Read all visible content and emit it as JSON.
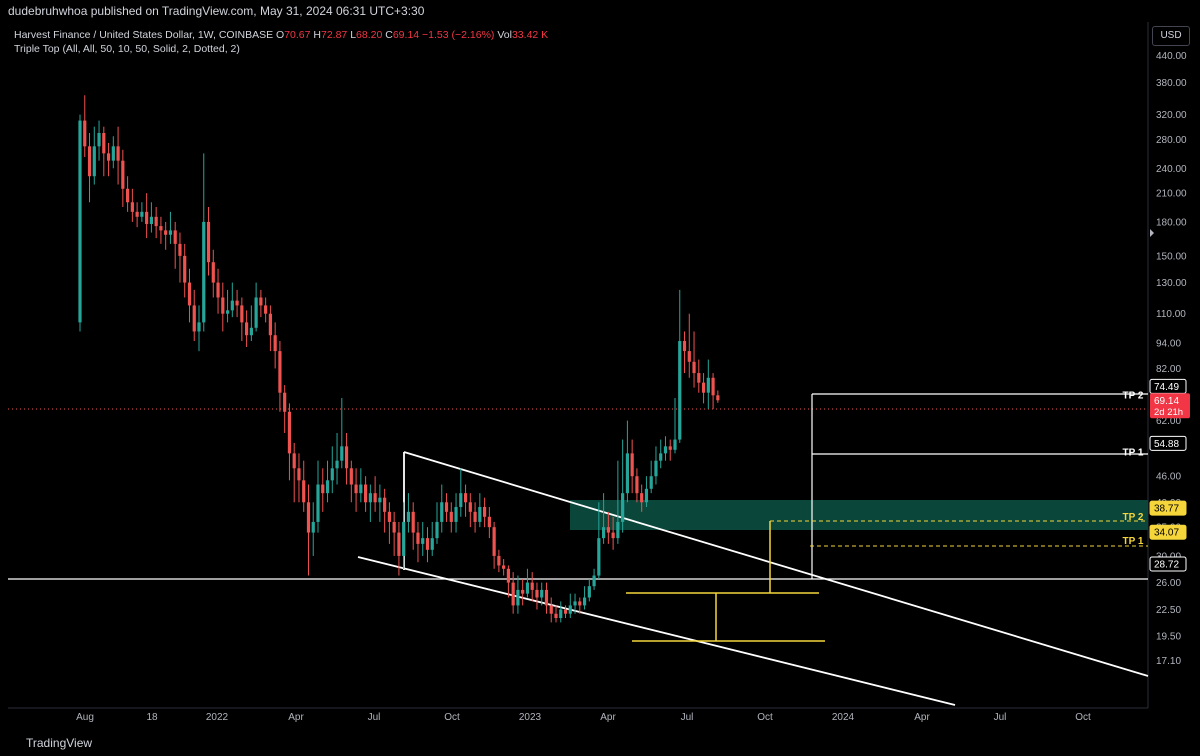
{
  "header": {
    "publisher_line": "dudebruhwhoa published on TradingView.com, May 31, 2024 06:31 UTC+3:30"
  },
  "legend": {
    "symbol_line": "Harvest Finance / United States Dollar, 1W, COINBASE",
    "open_label": "O",
    "open": "70.67",
    "high_label": "H",
    "high": "72.87",
    "low_label": "L",
    "low": "68.20",
    "close_label": "C",
    "close": "69.14",
    "change": "−1.53 (−2.16%)",
    "vol_label": "Vol",
    "vol": "33.42 K",
    "indicator": "Triple Top (All, All, 50, 10, 50, Solid, 2, Dotted, 2)"
  },
  "currency": "USD",
  "footer": {
    "brand": "TradingView"
  },
  "colors": {
    "up": "#26a69a",
    "down": "#ef5350",
    "line": "#ffffff",
    "pattern": "#f5d53a",
    "zone": "#0c4a3e",
    "price_badge": "#f23645",
    "grid": "#2a2e39"
  },
  "chart_data": {
    "type": "candlestick",
    "log_scale": true,
    "grid": false,
    "ylim": [
      15.5,
      460
    ],
    "x_tick_labels": [
      "Aug",
      "18",
      "2022",
      "Apr",
      "Jul",
      "Oct",
      "2023",
      "Apr",
      "Jul",
      "Oct",
      "2024",
      "Apr",
      "Jul",
      "Oct"
    ],
    "y_tick_labels": [
      "440.00",
      "380.00",
      "320.00",
      "280.00",
      "240.00",
      "210.00",
      "180.00",
      "150.00",
      "130.00",
      "110.00",
      "94.00",
      "82.00",
      "62.00",
      "46.00",
      "40.00",
      "35.00",
      "30.00",
      "26.00",
      "22.50",
      "19.50",
      "17.10"
    ],
    "y_tick_values": [
      440,
      380,
      320,
      280,
      240,
      210,
      180,
      150,
      130,
      110,
      94,
      82,
      62,
      46,
      40,
      35,
      30,
      26,
      22.5,
      19.5,
      17.1
    ],
    "last_price": {
      "value": 69.14,
      "label": "69.14",
      "countdown": "2d 21h"
    },
    "price_labels": [
      {
        "value": 74.49,
        "label": "74.49",
        "style": "white"
      },
      {
        "value": 54.88,
        "label": "54.88",
        "style": "white"
      },
      {
        "value": 38.77,
        "label": "38.77",
        "style": "yellow"
      },
      {
        "value": 34.07,
        "label": "34.07",
        "style": "yellow"
      },
      {
        "value": 28.72,
        "label": "28.72",
        "style": "white"
      }
    ],
    "annotations": [
      {
        "text": "TP 2",
        "value": 74.49,
        "color": "white"
      },
      {
        "text": "TP 1",
        "value": 54.88,
        "color": "white"
      },
      {
        "text": "TP 2",
        "value": 38.77,
        "color": "yellow"
      },
      {
        "text": "TP 1",
        "value": 34.07,
        "color": "yellow"
      }
    ],
    "candles": [
      [
        105,
        310,
        320,
        100
      ],
      [
        310,
        270,
        355,
        255
      ],
      [
        270,
        230,
        290,
        200
      ],
      [
        230,
        270,
        300,
        220
      ],
      [
        270,
        290,
        310,
        250
      ],
      [
        290,
        260,
        300,
        230
      ],
      [
        260,
        250,
        275,
        230
      ],
      [
        250,
        270,
        285,
        240
      ],
      [
        270,
        250,
        300,
        220
      ],
      [
        250,
        215,
        265,
        195
      ],
      [
        215,
        200,
        230,
        190
      ],
      [
        200,
        190,
        215,
        180
      ],
      [
        190,
        185,
        200,
        175
      ],
      [
        185,
        190,
        200,
        180
      ],
      [
        190,
        178,
        210,
        165
      ],
      [
        178,
        185,
        200,
        170
      ],
      [
        185,
        176,
        195,
        165
      ],
      [
        176,
        172,
        185,
        160
      ],
      [
        172,
        168,
        180,
        155
      ],
      [
        168,
        172,
        190,
        160
      ],
      [
        172,
        160,
        180,
        140
      ],
      [
        160,
        150,
        170,
        130
      ],
      [
        150,
        130,
        160,
        120
      ],
      [
        130,
        115,
        140,
        105
      ],
      [
        115,
        100,
        125,
        95
      ],
      [
        100,
        105,
        115,
        90
      ],
      [
        105,
        180,
        260,
        100
      ],
      [
        180,
        145,
        195,
        135
      ],
      [
        145,
        130,
        155,
        120
      ],
      [
        130,
        120,
        140,
        110
      ],
      [
        120,
        110,
        130,
        100
      ],
      [
        110,
        112,
        125,
        105
      ],
      [
        112,
        118,
        130,
        108
      ],
      [
        118,
        115,
        125,
        108
      ],
      [
        115,
        105,
        120,
        95
      ],
      [
        105,
        98,
        112,
        92
      ],
      [
        98,
        102,
        115,
        95
      ],
      [
        102,
        120,
        130,
        100
      ],
      [
        120,
        115,
        125,
        108
      ],
      [
        115,
        110,
        120,
        105
      ],
      [
        110,
        98,
        115,
        90
      ],
      [
        98,
        90,
        105,
        82
      ],
      [
        90,
        72,
        95,
        65
      ],
      [
        72,
        65,
        75,
        58
      ],
      [
        65,
        52,
        68,
        45
      ],
      [
        52,
        48,
        55,
        40
      ],
      [
        48,
        45,
        52,
        40
      ],
      [
        45,
        40,
        50,
        38
      ],
      [
        40,
        34,
        44,
        27
      ],
      [
        34,
        36,
        40,
        30
      ],
      [
        36,
        44,
        50,
        34
      ],
      [
        44,
        42,
        48,
        38
      ],
      [
        42,
        45,
        50,
        40
      ],
      [
        45,
        48,
        54,
        42
      ],
      [
        48,
        50,
        58,
        44
      ],
      [
        50,
        54,
        70,
        48
      ],
      [
        54,
        48,
        58,
        44
      ],
      [
        48,
        44,
        50,
        40
      ],
      [
        44,
        42,
        48,
        38
      ],
      [
        42,
        44,
        48,
        40
      ],
      [
        44,
        40,
        46,
        38
      ],
      [
        40,
        42,
        44,
        36
      ],
      [
        42,
        40,
        46,
        38
      ],
      [
        40,
        41,
        44,
        36
      ],
      [
        41,
        38,
        43,
        34
      ],
      [
        38,
        36,
        40,
        32
      ],
      [
        36,
        34,
        38,
        30
      ],
      [
        34,
        30,
        36,
        27
      ],
      [
        30,
        36,
        40,
        28
      ],
      [
        36,
        38,
        42,
        34
      ],
      [
        38,
        34,
        40,
        31
      ],
      [
        34,
        32,
        36,
        29
      ],
      [
        32,
        33,
        36,
        30
      ],
      [
        33,
        31,
        35,
        29
      ],
      [
        31,
        33,
        36,
        30
      ],
      [
        33,
        36,
        40,
        32
      ],
      [
        36,
        40,
        44,
        34
      ],
      [
        40,
        38,
        42,
        36
      ],
      [
        38,
        36,
        40,
        34
      ],
      [
        36,
        39,
        42,
        34
      ],
      [
        39,
        42,
        48,
        37
      ],
      [
        42,
        40,
        44,
        37
      ],
      [
        40,
        38,
        42,
        35
      ],
      [
        38,
        36,
        40,
        34
      ],
      [
        36,
        39,
        42,
        35
      ],
      [
        39,
        37,
        41,
        35
      ],
      [
        37,
        35,
        39,
        33
      ],
      [
        35,
        30,
        36,
        28
      ],
      [
        30,
        28.5,
        31,
        27.5
      ],
      [
        28.5,
        28,
        29.5,
        27
      ],
      [
        28,
        26,
        28.5,
        24
      ],
      [
        26,
        23,
        27.5,
        22
      ],
      [
        23,
        25,
        27,
        22
      ],
      [
        25,
        24.5,
        26.5,
        23
      ],
      [
        24.5,
        26,
        28,
        24
      ],
      [
        26,
        25,
        27.5,
        23.5
      ],
      [
        25,
        24,
        26,
        22.5
      ],
      [
        24,
        25,
        26,
        23
      ],
      [
        25,
        23,
        26,
        22
      ],
      [
        23,
        22,
        24,
        21
      ],
      [
        22,
        21.5,
        23,
        21
      ],
      [
        21.5,
        22.5,
        23.5,
        21
      ],
      [
        22.5,
        22,
        23,
        21.5
      ],
      [
        22,
        23,
        24.5,
        21.5
      ],
      [
        23,
        23.5,
        24.5,
        22
      ],
      [
        23.5,
        23,
        24,
        22
      ],
      [
        23,
        24,
        25.5,
        22.5
      ],
      [
        24,
        25.5,
        26.5,
        23.5
      ],
      [
        25.5,
        27,
        28,
        25
      ],
      [
        27,
        33,
        40,
        26.5
      ],
      [
        33,
        35,
        42,
        32
      ],
      [
        35,
        34,
        38,
        32
      ],
      [
        34,
        33,
        37,
        31
      ],
      [
        33,
        36,
        50,
        32
      ],
      [
        36,
        42,
        56,
        34
      ],
      [
        42,
        52,
        62,
        40
      ],
      [
        52,
        46,
        56,
        42
      ],
      [
        46,
        42,
        48,
        40
      ],
      [
        42,
        40,
        44,
        38
      ],
      [
        40,
        43,
        46,
        39
      ],
      [
        43,
        46,
        50,
        42
      ],
      [
        46,
        50,
        54,
        44
      ],
      [
        50,
        52,
        56,
        48
      ],
      [
        52,
        54,
        57,
        50
      ],
      [
        54,
        53,
        56,
        50
      ],
      [
        53,
        56,
        70,
        52
      ],
      [
        56,
        95,
        125,
        55
      ],
      [
        95,
        90,
        100,
        80
      ],
      [
        90,
        85,
        110,
        78
      ],
      [
        85,
        80,
        100,
        74
      ],
      [
        80,
        76,
        86,
        72
      ],
      [
        76,
        72,
        80,
        68
      ],
      [
        72,
        78,
        86,
        66
      ],
      [
        78,
        71,
        80,
        66
      ],
      [
        71,
        69.14,
        72.87,
        68.2
      ]
    ]
  }
}
